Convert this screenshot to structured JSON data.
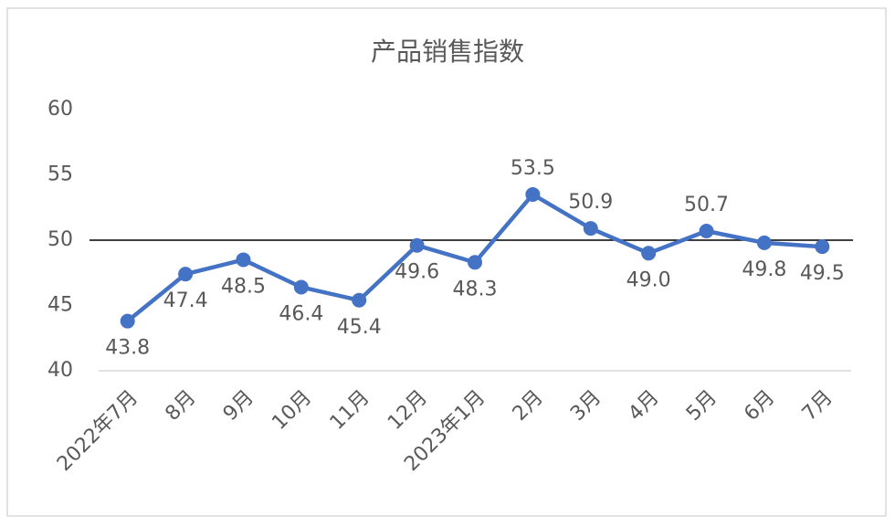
{
  "chart_data": {
    "type": "line",
    "title": "产品销售指数",
    "categories": [
      "2022年7月",
      "8月",
      "9月",
      "10月",
      "11月",
      "12月",
      "2023年1月",
      "2月",
      "3月",
      "4月",
      "5月",
      "6月",
      "7月"
    ],
    "series": [
      {
        "name": "产品销售指数",
        "color": "#4472c4",
        "values": [
          43.8,
          47.4,
          48.5,
          46.4,
          45.4,
          49.6,
          48.3,
          53.5,
          50.9,
          49.0,
          50.7,
          49.8,
          49.5
        ],
        "value_labels": [
          "43.8",
          "47.4",
          "48.5",
          "46.4",
          "45.4",
          "49.6",
          "48.3",
          "53.5",
          "50.9",
          "49.0",
          "50.7",
          "49.8",
          "49.5"
        ]
      }
    ],
    "ylim": [
      40,
      60
    ],
    "yticks": [
      40,
      45,
      50,
      55,
      60
    ],
    "grid": false,
    "reference_line": 50
  }
}
